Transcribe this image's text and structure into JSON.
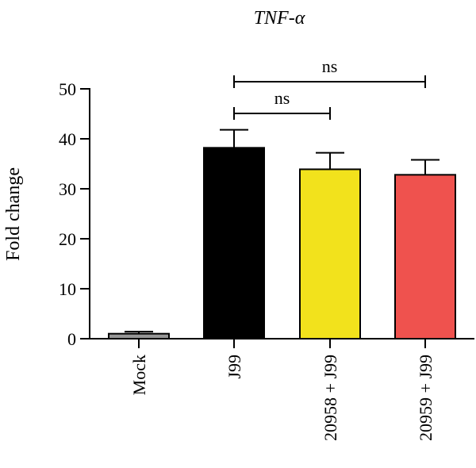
{
  "chart_data": {
    "type": "bar",
    "title": "TNF-α",
    "xlabel": "",
    "ylabel": "Fold change",
    "ylim": [
      0,
      50
    ],
    "yticks": [
      0,
      10,
      20,
      30,
      40,
      50
    ],
    "grid": false,
    "categories": [
      "Mock",
      "J99",
      "20958 + J99",
      "20959 + J99"
    ],
    "values": [
      1.0,
      38.2,
      33.9,
      32.8
    ],
    "errors": [
      0.4,
      3.6,
      3.3,
      3.0
    ],
    "colors": [
      "#969696",
      "#000000",
      "#f2e21c",
      "#ef524e"
    ],
    "comparisons": [
      {
        "from": 1,
        "to": 3,
        "label": "ns"
      },
      {
        "from": 1,
        "to": 2,
        "label": "ns"
      }
    ]
  }
}
